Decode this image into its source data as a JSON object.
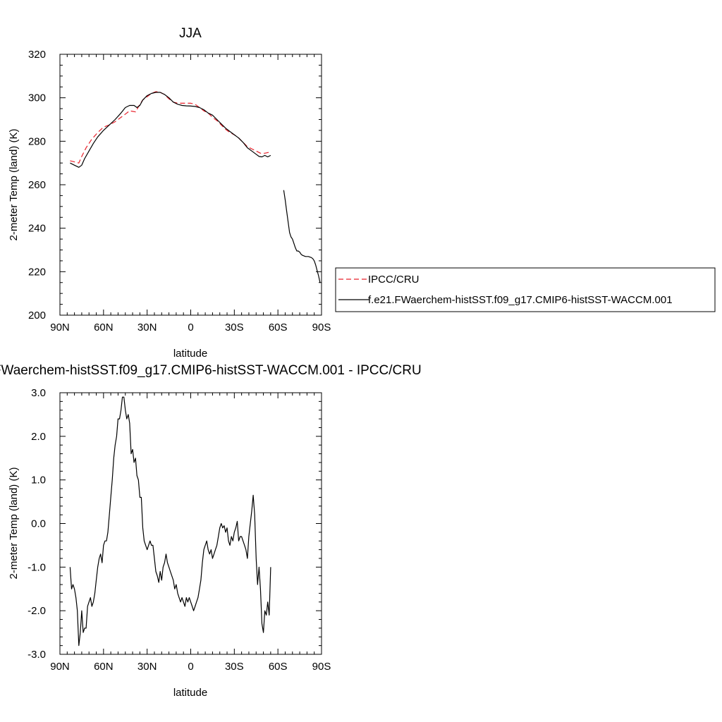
{
  "chart_data": [
    {
      "type": "line",
      "title": "JJA",
      "xlabel": "latitude",
      "ylabel": "2-meter Temp (land) (K)",
      "xlim": [
        90,
        -90
      ],
      "ylim": [
        200,
        320
      ],
      "x_ticks": [
        {
          "value": 90,
          "label": "90N"
        },
        {
          "value": 60,
          "label": "60N"
        },
        {
          "value": 30,
          "label": "30N"
        },
        {
          "value": 0,
          "label": "0"
        },
        {
          "value": -30,
          "label": "30S"
        },
        {
          "value": -60,
          "label": "60S"
        },
        {
          "value": -90,
          "label": "90S"
        }
      ],
      "y_ticks": [
        {
          "value": 200,
          "label": "200"
        },
        {
          "value": 220,
          "label": "220"
        },
        {
          "value": 240,
          "label": "240"
        },
        {
          "value": 260,
          "label": "260"
        },
        {
          "value": 280,
          "label": "280"
        },
        {
          "value": 300,
          "label": "300"
        },
        {
          "value": 320,
          "label": "320"
        }
      ],
      "legend": {
        "placement": "right"
      },
      "series": [
        {
          "name": "IPCC/CRU",
          "color": "#e8202a",
          "dash": true,
          "x": [
            83,
            80,
            77,
            75,
            72,
            68,
            64,
            60,
            56,
            52,
            48,
            45,
            42,
            38,
            35,
            33,
            30,
            27,
            24,
            21,
            18,
            15,
            12,
            9,
            6,
            3,
            0,
            -3,
            -6,
            -9,
            -12,
            -15,
            -18,
            -21,
            -24,
            -27,
            -30,
            -33,
            -36,
            -39,
            -42,
            -45,
            -48,
            -51,
            -53,
            -55
          ],
          "y": [
            271,
            270.5,
            270,
            273,
            277,
            281,
            284,
            286.5,
            287.5,
            289,
            291,
            292.5,
            294,
            293.5,
            297,
            299,
            300.5,
            302,
            302.8,
            302.5,
            301.5,
            299.5,
            298,
            297.5,
            297.5,
            297.5,
            297.5,
            297,
            295.5,
            294,
            293,
            291,
            289.5,
            287.5,
            285.5,
            284,
            283,
            281.5,
            279.5,
            277.5,
            276.5,
            275.5,
            274.5,
            274.5,
            274.8,
            275
          ]
        },
        {
          "name": "f.e21.FWaerchem-histSST.f09_g17.CMIP6-histSST-WACCM.001",
          "color": "#000000",
          "dash": false,
          "x": [
            83,
            80,
            77,
            75,
            73,
            70,
            67,
            64,
            60,
            56,
            52,
            48,
            45,
            42,
            39,
            37,
            35,
            33,
            30,
            27,
            24,
            21,
            18,
            15,
            12,
            9,
            6,
            3,
            0,
            -3,
            -6,
            -9,
            -12,
            -15,
            -18,
            -21,
            -24,
            -27,
            -30,
            -33,
            -36,
            -39,
            -42,
            -45,
            -47,
            -49,
            -51,
            -53,
            -55,
            null,
            -64,
            -65,
            -66,
            -67,
            -68,
            -69,
            -70,
            -72,
            -73,
            -74,
            -75,
            -76,
            -77,
            -79,
            -81,
            -83,
            -84,
            -85,
            -86,
            -87,
            -88,
            -89
          ],
          "y": [
            270,
            269,
            268,
            269,
            272,
            275.5,
            279,
            282,
            285,
            287.5,
            290,
            293,
            295.5,
            296.5,
            296.5,
            295.5,
            296.5,
            299,
            301,
            302,
            302.5,
            302.5,
            301.5,
            300,
            298,
            297,
            296.5,
            296.3,
            296.2,
            296,
            295.5,
            294.5,
            293,
            292,
            290,
            288,
            286,
            284.5,
            283,
            281.5,
            279.5,
            277,
            275.5,
            274,
            273,
            272.8,
            273.5,
            272.8,
            273.5,
            null,
            257.5,
            253,
            248,
            243,
            238,
            236,
            235,
            231,
            229.5,
            229.5,
            229,
            228,
            227.5,
            227,
            227,
            226.5,
            226,
            225,
            223,
            220.5,
            218,
            215
          ]
        }
      ]
    },
    {
      "type": "line",
      "title": "f.e21.FWaerchem-histSST.f09_g17.CMIP6-histSST-WACCM.001 - IPCC/CRU",
      "xlabel": "latitude",
      "ylabel": "2-meter Temp (land) (K)",
      "xlim": [
        90,
        -90
      ],
      "ylim": [
        -3.0,
        3.0
      ],
      "x_ticks": [
        {
          "value": 90,
          "label": "90N"
        },
        {
          "value": 60,
          "label": "60N"
        },
        {
          "value": 30,
          "label": "30N"
        },
        {
          "value": 0,
          "label": "0"
        },
        {
          "value": -30,
          "label": "30S"
        },
        {
          "value": -60,
          "label": "60S"
        },
        {
          "value": -90,
          "label": "90S"
        }
      ],
      "y_ticks": [
        {
          "value": 3.0,
          "label": "3.0"
        },
        {
          "value": 2.0,
          "label": "2.0"
        },
        {
          "value": 1.0,
          "label": "1.0"
        },
        {
          "value": 0.0,
          "label": "0.0"
        },
        {
          "value": -1.0,
          "label": "-1.0"
        },
        {
          "value": -2.0,
          "label": "-2.0"
        },
        {
          "value": -3.0,
          "label": "-3.0"
        }
      ],
      "series": [
        {
          "name": "",
          "color": "#000000",
          "dash": false,
          "x": [
            83,
            82,
            81,
            80,
            79,
            78,
            77,
            76,
            75,
            74,
            73,
            72,
            71,
            70,
            69,
            68,
            67,
            66,
            65,
            64,
            63,
            62,
            61,
            60,
            59,
            58,
            57,
            56,
            55,
            54,
            53,
            52,
            51,
            50,
            49,
            48,
            47,
            46,
            45,
            44,
            43,
            42,
            41,
            40,
            39,
            38,
            37,
            36,
            35,
            34,
            33,
            32,
            31,
            30,
            29,
            28,
            27,
            26,
            25,
            24,
            23,
            22,
            21,
            20,
            19,
            18,
            17,
            16,
            15,
            14,
            13,
            12,
            11,
            10,
            9,
            8,
            7,
            6,
            5,
            4,
            3,
            2,
            1,
            0,
            -1,
            -2,
            -3,
            -4,
            -5,
            -6,
            -7,
            -8,
            -9,
            -10,
            -11,
            -12,
            -13,
            -14,
            -15,
            -16,
            -17,
            -18,
            -19,
            -20,
            -21,
            -22,
            -23,
            -24,
            -25,
            -26,
            -27,
            -28,
            -29,
            -30,
            -31,
            -32,
            -33,
            -34,
            -35,
            -36,
            -37,
            -38,
            -39,
            -40,
            -41,
            -42,
            -43,
            -44,
            -45,
            -46,
            -47,
            -48,
            -49,
            -50,
            -51,
            -52,
            -53,
            -54,
            -55
          ],
          "y": [
            -1.0,
            -1.5,
            -1.4,
            -1.5,
            -1.7,
            -2.0,
            -2.8,
            -2.5,
            -2.0,
            -2.5,
            -2.4,
            -2.4,
            -1.9,
            -1.8,
            -1.7,
            -1.9,
            -1.8,
            -1.6,
            -1.3,
            -1.0,
            -0.8,
            -0.7,
            -0.9,
            -0.5,
            -0.4,
            -0.4,
            -0.2,
            0.2,
            0.6,
            1.0,
            1.5,
            1.8,
            2.0,
            2.4,
            2.4,
            2.6,
            2.9,
            2.9,
            2.6,
            2.4,
            2.5,
            2.3,
            1.6,
            1.7,
            1.4,
            1.5,
            1.1,
            1.0,
            0.6,
            0.6,
            -0.1,
            -0.4,
            -0.5,
            -0.6,
            -0.5,
            -0.4,
            -0.5,
            -0.5,
            -0.8,
            -1.1,
            -1.2,
            -1.35,
            -1.1,
            -1.3,
            -1.0,
            -0.9,
            -0.7,
            -0.9,
            -1.0,
            -1.1,
            -1.2,
            -1.3,
            -1.5,
            -1.4,
            -1.6,
            -1.7,
            -1.8,
            -1.7,
            -1.8,
            -1.9,
            -1.7,
            -1.8,
            -1.7,
            -1.8,
            -1.9,
            -2.0,
            -1.9,
            -1.8,
            -1.7,
            -1.5,
            -1.3,
            -0.9,
            -0.6,
            -0.5,
            -0.4,
            -0.6,
            -0.7,
            -0.6,
            -0.8,
            -0.7,
            -0.6,
            -0.5,
            -0.3,
            -0.1,
            0.0,
            -0.1,
            -0.05,
            -0.2,
            -0.1,
            -0.4,
            -0.5,
            -0.3,
            -0.4,
            -0.2,
            -0.1,
            0.05,
            -0.4,
            -0.3,
            -0.3,
            -0.4,
            -0.5,
            -0.6,
            -0.8,
            -0.3,
            0.0,
            0.3,
            0.65,
            0.2,
            -0.8,
            -1.4,
            -1.0,
            -1.5,
            -2.3,
            -2.5,
            -2.0,
            -2.1,
            -1.8,
            -2.1,
            -1.0
          ]
        }
      ]
    }
  ]
}
